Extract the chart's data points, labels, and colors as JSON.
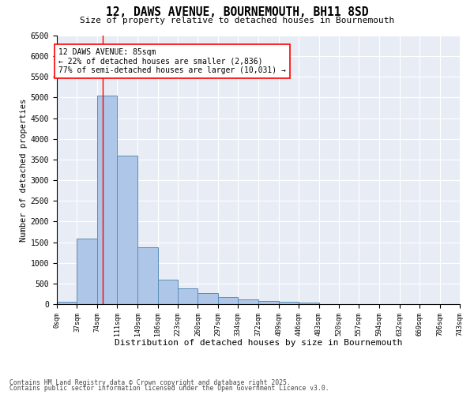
{
  "title_line1": "12, DAWS AVENUE, BOURNEMOUTH, BH11 8SD",
  "title_line2": "Size of property relative to detached houses in Bournemouth",
  "xlabel": "Distribution of detached houses by size in Bournemouth",
  "ylabel": "Number of detached properties",
  "bar_color": "#aec6e8",
  "bar_edge_color": "#5b8db8",
  "background_color": "#e8edf5",
  "grid_color": "#ffffff",
  "annotation_text": "12 DAWS AVENUE: 85sqm\n← 22% of detached houses are smaller (2,836)\n77% of semi-detached houses are larger (10,031) →",
  "property_line_x": 85,
  "footer_line1": "Contains HM Land Registry data © Crown copyright and database right 2025.",
  "footer_line2": "Contains public sector information licensed under the Open Government Licence v3.0.",
  "bin_edges": [
    0,
    37,
    74,
    111,
    149,
    186,
    223,
    260,
    297,
    334,
    372,
    409,
    446,
    483,
    520,
    557,
    594,
    632,
    669,
    706,
    743
  ],
  "bar_heights": [
    50,
    1580,
    5050,
    3600,
    1380,
    600,
    380,
    270,
    170,
    120,
    80,
    50,
    30,
    0,
    0,
    0,
    0,
    0,
    0,
    0
  ],
  "ylim": [
    0,
    6500
  ],
  "yticks": [
    0,
    500,
    1000,
    1500,
    2000,
    2500,
    3000,
    3500,
    4000,
    4500,
    5000,
    5500,
    6000,
    6500
  ]
}
